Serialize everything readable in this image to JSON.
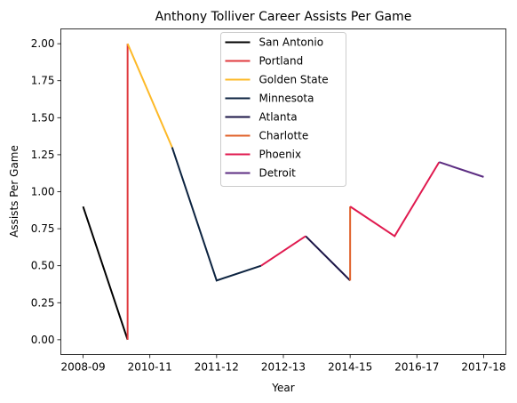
{
  "chart_data": {
    "type": "line",
    "title": "Anthony Tolliver Career Assists Per Game",
    "xlabel": "Year",
    "ylabel": "Assists Per Game",
    "x_tick_labels": [
      "2008-09",
      "2010-11",
      "2011-12",
      "2012-13",
      "2014-15",
      "2016-17",
      "2017-18"
    ],
    "x_tick_positions": [
      0,
      1.5,
      3,
      4.5,
      6,
      7.5,
      9
    ],
    "xlim": [
      -0.5,
      9.5
    ],
    "ylim": [
      -0.1,
      2.1
    ],
    "y_ticks": [
      0.0,
      0.25,
      0.5,
      0.75,
      1.0,
      1.25,
      1.5,
      1.75,
      2.0
    ],
    "y_tick_labels": [
      "0.00",
      "0.25",
      "0.50",
      "0.75",
      "1.00",
      "1.25",
      "1.50",
      "1.75",
      "2.00"
    ],
    "grid": false,
    "legend_position": "top-center",
    "series": [
      {
        "name": "San Antonio",
        "color": "#000000",
        "x": [
          0,
          1
        ],
        "y": [
          0.9,
          0.0
        ]
      },
      {
        "name": "Portland",
        "color": "#e03a3e",
        "x": [
          1,
          1
        ],
        "y": [
          0.0,
          2.0
        ]
      },
      {
        "name": "Golden State",
        "color": "#fdb927",
        "x": [
          1,
          2
        ],
        "y": [
          2.0,
          1.3
        ]
      },
      {
        "name": "Minnesota",
        "color": "#0c2340",
        "x": [
          2,
          3,
          4
        ],
        "y": [
          1.3,
          0.4,
          0.5
        ]
      },
      {
        "name": "Atlanta",
        "color": "#1a1446",
        "x": [
          5,
          6
        ],
        "y": [
          0.7,
          0.4
        ]
      },
      {
        "name": "Charlotte",
        "color": "#e0612a",
        "x": [
          6,
          6
        ],
        "y": [
          0.4,
          0.9
        ]
      },
      {
        "name": "Phoenix",
        "color": "#e01a4f",
        "x": [
          4,
          5
        ],
        "y": [
          0.5,
          0.7
        ],
        "x2": [
          6,
          7,
          8
        ],
        "y2": [
          0.9,
          0.7,
          1.2
        ]
      },
      {
        "name": "Detroit",
        "color": "#5c2d82",
        "x": [
          8,
          9
        ],
        "y": [
          1.2,
          1.1
        ]
      }
    ]
  }
}
